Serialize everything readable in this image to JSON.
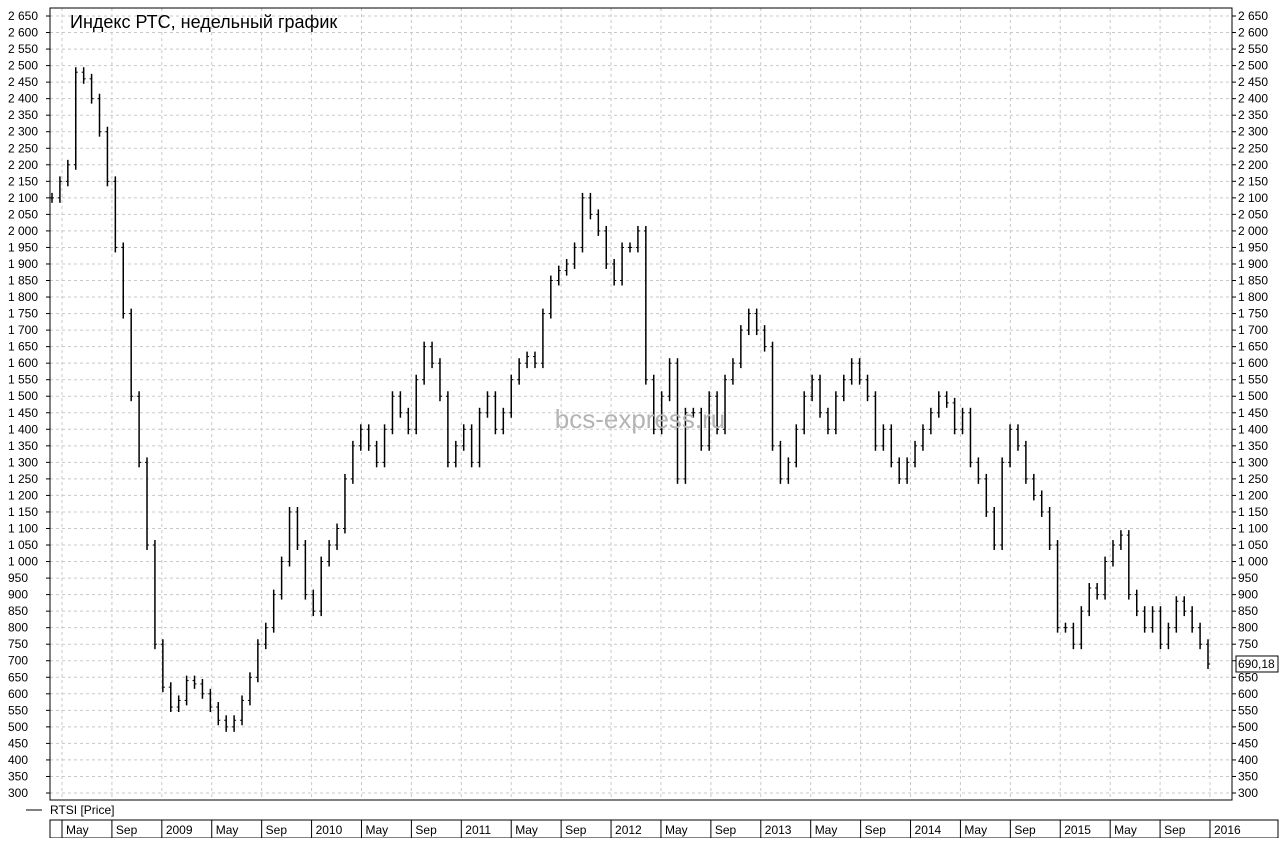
{
  "chart_data": {
    "type": "bar",
    "title": "Индекс РТС, недельный график",
    "watermark": "bcs-express.ru",
    "legend_label": "RTSI [Price]",
    "last_value_label": "690,18",
    "ylim": [
      300,
      2650
    ],
    "ytick_labels": [
      "2 650",
      "2 600",
      "2 550",
      "2 500",
      "2 450",
      "2 400",
      "2 350",
      "2 300",
      "2 250",
      "2 200",
      "2 150",
      "2 100",
      "2 050",
      "2 000",
      "1 950",
      "1 900",
      "1 850",
      "1 800",
      "1 750",
      "1 700",
      "1 650",
      "1 600",
      "1 550",
      "1 500",
      "1 450",
      "1 400",
      "1 350",
      "1 300",
      "1 250",
      "1 200",
      "1 150",
      "1 100",
      "1 050",
      "1 000",
      "950",
      "900",
      "850",
      "800",
      "750",
      "700",
      "650",
      "600",
      "550",
      "500",
      "450",
      "400",
      "350",
      "300"
    ],
    "xtick_labels": [
      "May",
      "Sep",
      "2009",
      "May",
      "Sep",
      "2010",
      "May",
      "Sep",
      "2011",
      "May",
      "Sep",
      "2012",
      "May",
      "Sep",
      "2013",
      "May",
      "Sep",
      "2014",
      "May",
      "Sep",
      "2015",
      "May",
      "Sep",
      "2016"
    ],
    "series": [
      {
        "values": [
          2100,
          2150,
          2200,
          2480,
          2460,
          2400,
          2300,
          2150,
          1950,
          1750,
          1500,
          1300,
          1050,
          750,
          620,
          560,
          580,
          640,
          630,
          600,
          560,
          520,
          500,
          520,
          580,
          650,
          750,
          800,
          900,
          1000,
          1150,
          1050,
          900,
          850,
          1000,
          1050,
          1100,
          1250,
          1350,
          1400,
          1350,
          1300,
          1400,
          1500,
          1450,
          1400,
          1550,
          1650,
          1600,
          1500,
          1300,
          1350,
          1400,
          1300,
          1450,
          1500,
          1400,
          1450,
          1550,
          1600,
          1620,
          1600,
          1750,
          1850,
          1880,
          1900,
          1950,
          2100,
          2050,
          2000,
          1900,
          1850,
          1950,
          1950,
          2000,
          1550,
          1400,
          1500,
          1600,
          1250,
          1450,
          1450,
          1350,
          1500,
          1400,
          1550,
          1600,
          1700,
          1750,
          1700,
          1650,
          1350,
          1250,
          1300,
          1400,
          1500,
          1550,
          1450,
          1400,
          1500,
          1550,
          1600,
          1550,
          1500,
          1350,
          1400,
          1300,
          1250,
          1300,
          1350,
          1400,
          1450,
          1500,
          1480,
          1400,
          1450,
          1300,
          1250,
          1150,
          1050,
          1300,
          1400,
          1350,
          1250,
          1200,
          1150,
          1050,
          800,
          800,
          750,
          850,
          920,
          900,
          1000,
          1050,
          1080,
          900,
          850,
          800,
          850,
          750,
          800,
          880,
          850,
          800,
          750,
          690.18
        ]
      }
    ]
  }
}
